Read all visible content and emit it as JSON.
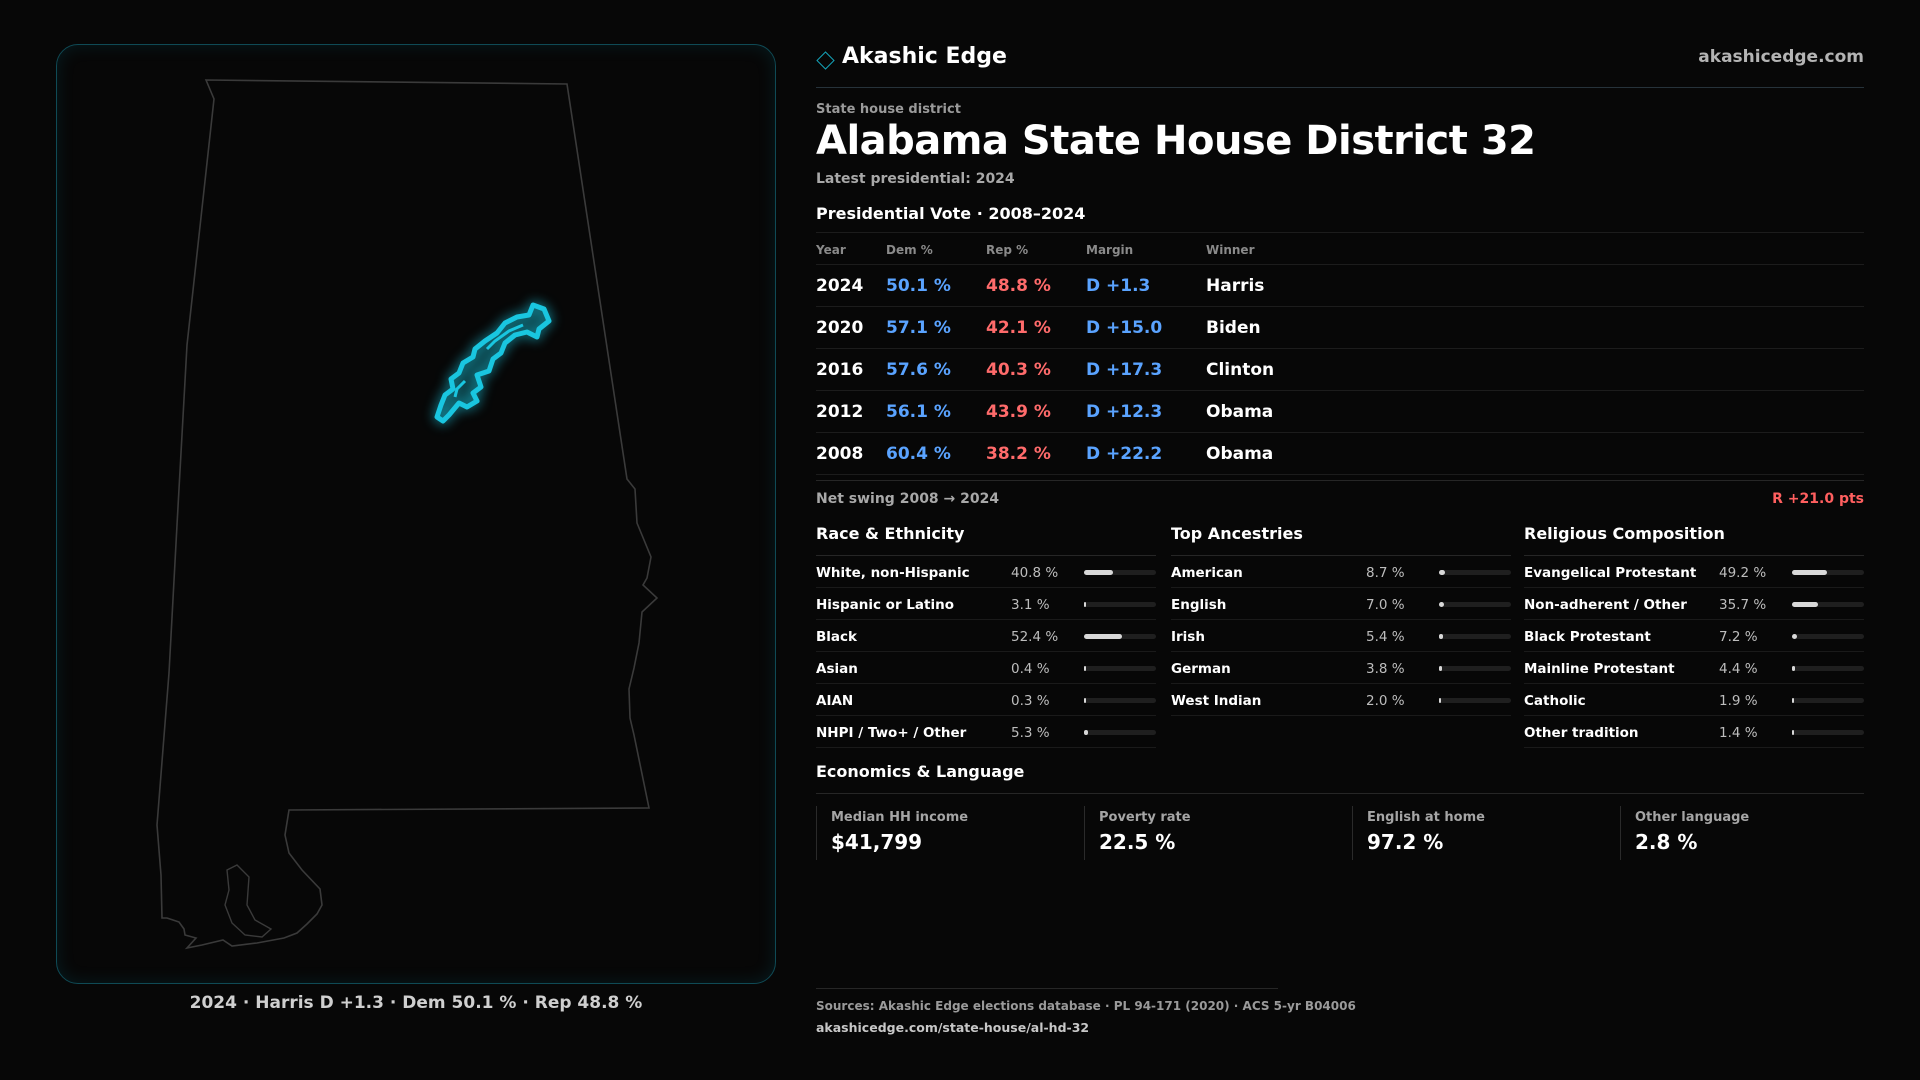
{
  "brand": {
    "name": "Akashic Edge",
    "url": "akashicedge.com",
    "accent": "#14a3b8"
  },
  "header": {
    "kicker": "State house district",
    "title": "Alabama State House District 32",
    "latest": "Latest presidential: 2024"
  },
  "vote": {
    "heading": "Presidential Vote · 2008–2024",
    "columns": {
      "year": "Year",
      "dem": "Dem %",
      "rep": "Rep %",
      "margin": "Margin",
      "winner": "Winner"
    },
    "rows": [
      {
        "year": "2024",
        "dem": "50.1 %",
        "rep": "48.8 %",
        "margin": "D +1.3",
        "winner": "Harris"
      },
      {
        "year": "2020",
        "dem": "57.1 %",
        "rep": "42.1 %",
        "margin": "D +15.0",
        "winner": "Biden"
      },
      {
        "year": "2016",
        "dem": "57.6 %",
        "rep": "40.3 %",
        "margin": "D +17.3",
        "winner": "Clinton"
      },
      {
        "year": "2012",
        "dem": "56.1 %",
        "rep": "43.9 %",
        "margin": "D +12.3",
        "winner": "Obama"
      },
      {
        "year": "2008",
        "dem": "60.4 %",
        "rep": "38.2 %",
        "margin": "D +22.2",
        "winner": "Obama"
      }
    ],
    "colors": {
      "dem": "#5aa3ff",
      "rep": "#ff6b6b"
    }
  },
  "swing": {
    "label": "Net swing 2008 → 2024",
    "value": "R +21.0 pts"
  },
  "race": {
    "title": "Race & Ethnicity",
    "rows": [
      {
        "label": "White, non-Hispanic",
        "value": "40.8 %",
        "pct": 40.8
      },
      {
        "label": "Hispanic or Latino",
        "value": "3.1 %",
        "pct": 3.1
      },
      {
        "label": "Black",
        "value": "52.4 %",
        "pct": 52.4
      },
      {
        "label": "Asian",
        "value": "0.4 %",
        "pct": 0.4
      },
      {
        "label": "AIAN",
        "value": "0.3 %",
        "pct": 0.3
      },
      {
        "label": "NHPI / Two+ / Other",
        "value": "5.3 %",
        "pct": 5.3
      }
    ]
  },
  "ancestry": {
    "title": "Top Ancestries",
    "rows": [
      {
        "label": "American",
        "value": "8.7 %",
        "pct": 8.7
      },
      {
        "label": "English",
        "value": "7.0 %",
        "pct": 7.0
      },
      {
        "label": "Irish",
        "value": "5.4 %",
        "pct": 5.4
      },
      {
        "label": "German",
        "value": "3.8 %",
        "pct": 3.8
      },
      {
        "label": "West Indian",
        "value": "2.0 %",
        "pct": 2.0
      }
    ]
  },
  "religion": {
    "title": "Religious Composition",
    "rows": [
      {
        "label": "Evangelical Protestant",
        "value": "49.2 %",
        "pct": 49.2
      },
      {
        "label": "Non-adherent / Other",
        "value": "35.7 %",
        "pct": 35.7
      },
      {
        "label": "Black Protestant",
        "value": "7.2 %",
        "pct": 7.2
      },
      {
        "label": "Mainline Protestant",
        "value": "4.4 %",
        "pct": 4.4
      },
      {
        "label": "Catholic",
        "value": "1.9 %",
        "pct": 1.9
      },
      {
        "label": "Other tradition",
        "value": "1.4 %",
        "pct": 1.4
      }
    ]
  },
  "economics": {
    "title": "Economics & Language",
    "cells": [
      {
        "label": "Median HH income",
        "value": "$41,799"
      },
      {
        "label": "Poverty rate",
        "value": "22.5 %"
      },
      {
        "label": "English at home",
        "value": "97.2 %"
      },
      {
        "label": "Other language",
        "value": "2.8 %"
      }
    ]
  },
  "map": {
    "caption": "2024 · Harris D +1.3 · Dem 50.1 % · Rep 48.8 %",
    "highlight": "#19c6e0"
  },
  "sources": {
    "line1": "Sources: Akashic Edge elections database · PL 94-171 (2020) · ACS 5-yr B04006",
    "line2": "akashicedge.com/state-house/al-hd-32"
  }
}
